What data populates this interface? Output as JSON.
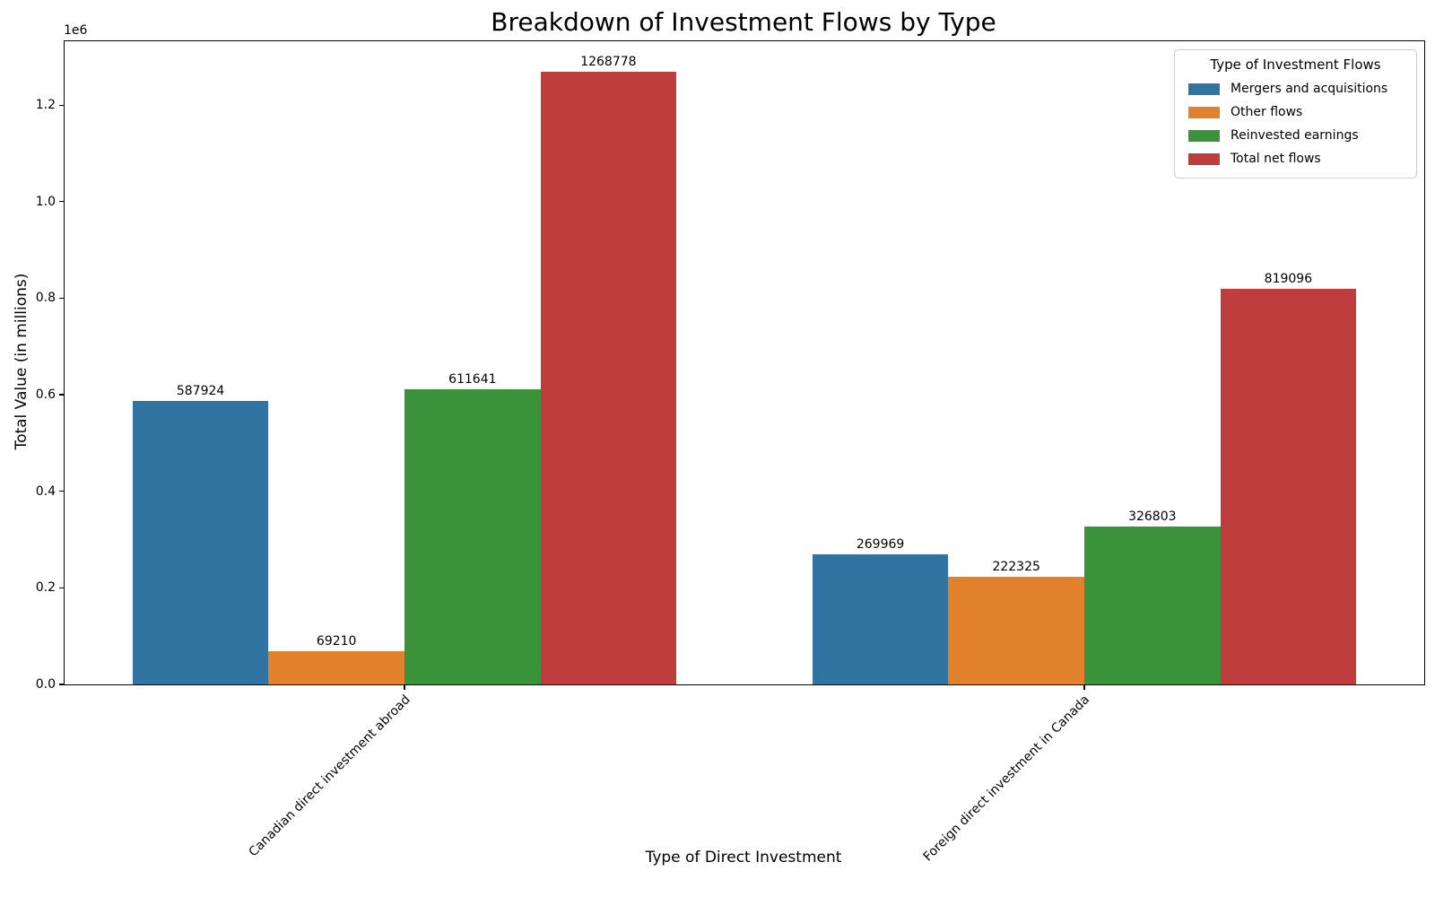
{
  "chart_data": {
    "type": "bar",
    "title": "Breakdown of Investment Flows by Type",
    "xlabel": "Type of Direct Investment",
    "ylabel": "Total Value (in millions)",
    "categories": [
      "Canadian direct investment abroad",
      "Foreign direct investment in Canada"
    ],
    "series": [
      {
        "name": "Mergers and acquisitions",
        "color": "#3274A1",
        "values": [
          587924,
          269969
        ]
      },
      {
        "name": "Other flows",
        "color": "#E1812C",
        "values": [
          69210,
          222325
        ]
      },
      {
        "name": "Reinvested earnings",
        "color": "#3A923A",
        "values": [
          611641,
          326803
        ]
      },
      {
        "name": "Total net flows",
        "color": "#C03D3E",
        "values": [
          1268778,
          819096
        ]
      }
    ],
    "legend_title": "Type of Investment Flows",
    "legend_position": "upper right",
    "grid": false,
    "ylim": [
      0,
      1332217
    ],
    "y_offset_label": "1e6",
    "y_ticks": [
      0,
      200000,
      400000,
      600000,
      800000,
      1000000,
      1200000
    ],
    "y_tick_labels": [
      "0.0",
      "0.2",
      "0.4",
      "0.6",
      "0.8",
      "1.0",
      "1.2"
    ],
    "bar_group_width_fraction": 0.8
  }
}
